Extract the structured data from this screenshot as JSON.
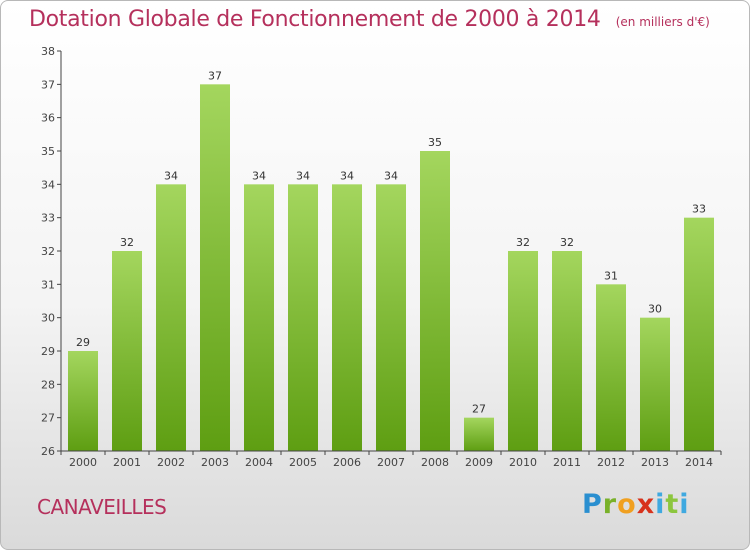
{
  "header": {
    "title": "Dotation Globale de Fonctionnement de 2000 à 2014",
    "unit": "(en milliers d'€)"
  },
  "commune": "CANAVEILLES",
  "logo": {
    "letters": [
      "P",
      "r",
      "o",
      "x",
      "i",
      "t",
      "i"
    ]
  },
  "colors": {
    "title": "#b5305c",
    "bar_top": "#a4d65e",
    "bar_bottom": "#5e9e12",
    "axis": "#444444"
  },
  "chart_data": {
    "type": "bar",
    "categories": [
      "2000",
      "2001",
      "2002",
      "2003",
      "2004",
      "2005",
      "2006",
      "2007",
      "2008",
      "2009",
      "2010",
      "2011",
      "2012",
      "2013",
      "2014"
    ],
    "values": [
      29,
      32,
      34,
      37,
      34,
      34,
      34,
      34,
      35,
      27,
      32,
      32,
      31,
      30,
      33
    ],
    "ylim": [
      26,
      38
    ],
    "yticks": [
      26,
      27,
      28,
      29,
      30,
      31,
      32,
      33,
      34,
      35,
      36,
      37,
      38
    ],
    "grid": false,
    "xlabel": "",
    "ylabel": ""
  }
}
